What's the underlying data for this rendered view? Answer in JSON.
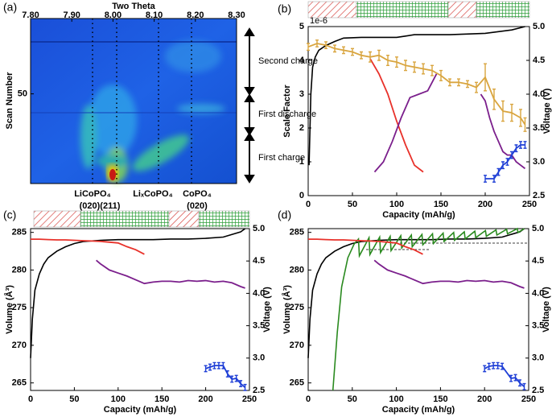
{
  "chart_data": [
    {
      "type": "heatmap",
      "panel_label": "(a)",
      "x_label": "Two Theta",
      "y_label": "Scan Number",
      "xlim": [
        7.8,
        8.3
      ],
      "xticks": [
        {
          "value": 7.8,
          "label": "7.80"
        },
        {
          "value": 7.9,
          "label": "7.90"
        },
        {
          "value": 8.0,
          "label": "8.00"
        },
        {
          "value": 8.1,
          "label": "8.10"
        },
        {
          "value": 8.2,
          "label": "8.20"
        },
        {
          "value": 8.3,
          "label": "8.30"
        }
      ],
      "ylim": [
        0,
        92
      ],
      "yticks": [
        50
      ],
      "peak_labels": [
        "LiCoPO₄",
        "(020)(211)",
        "LiₓCoPO₄",
        "CoPO₄",
        "(020)"
      ],
      "regions": [
        "Second charge",
        "First discharge",
        "First charge"
      ]
    },
    {
      "type": "line",
      "panel_label": "(b)",
      "x_label": "Capacity (mAh/g)",
      "y_label": "Scale Factor",
      "y2_label": "Voltage (V)",
      "y_multiplier": "1e-6",
      "xlim": [
        0,
        250
      ],
      "xticks": [
        0,
        50,
        100,
        150,
        200,
        250
      ],
      "ylim": [
        0,
        5
      ],
      "yticks": [
        0,
        1,
        2,
        3,
        4,
        5
      ],
      "y2lim": [
        2.5,
        5.0
      ],
      "y2ticks": [
        2.5,
        {
          "value": 3,
          "label": "3.0"
        },
        3.5,
        {
          "value": 4,
          "label": "4.0"
        },
        4.5,
        {
          "value": 5,
          "label": "5.0"
        }
      ],
      "series": [
        {
          "color": "#000000",
          "axis": "y2",
          "x": [
            1,
            3,
            5,
            8,
            12,
            20,
            30,
            40,
            60,
            80,
            100,
            110,
            120,
            160,
            200,
            230,
            245
          ],
          "values": [
            2.95,
            4.0,
            4.4,
            4.55,
            4.65,
            4.72,
            4.78,
            4.83,
            4.84,
            4.84,
            4.84,
            4.86,
            4.88,
            4.88,
            4.9,
            4.95,
            5.0
          ]
        },
        {
          "color": "#e8312a",
          "x": [
            70,
            80,
            90,
            100,
            110,
            120,
            130
          ],
          "values": [
            4.05,
            3.6,
            3.0,
            2.2,
            1.5,
            0.9,
            0.7
          ]
        },
        {
          "color": "#7b1f8c",
          "x": [
            75,
            85,
            95,
            105,
            115,
            125,
            135,
            145,
            170,
            195,
            200,
            205,
            210,
            215,
            220,
            225,
            230,
            235,
            240,
            245
          ],
          "values": [
            0.7,
            1.0,
            1.6,
            2.3,
            2.9,
            3.0,
            3.1,
            3.6,
            null,
            3.0,
            2.8,
            2.3,
            1.9,
            1.6,
            1.3,
            1.2,
            1.2,
            1.0,
            0.9,
            0.8
          ]
        },
        {
          "color": "#d9a53f",
          "x": [
            0,
            10,
            20,
            30,
            40,
            50,
            60,
            70,
            80,
            90,
            100,
            110,
            120,
            130,
            140,
            150,
            160,
            170,
            180,
            190,
            200,
            210,
            220,
            230,
            240,
            245
          ],
          "values": [
            4.4,
            4.5,
            4.45,
            4.35,
            4.3,
            4.25,
            4.15,
            4.1,
            4.15,
            4.0,
            3.95,
            3.85,
            3.8,
            3.75,
            3.7,
            3.55,
            3.35,
            3.35,
            3.3,
            3.2,
            3.5,
            2.85,
            2.5,
            2.45,
            2.3,
            2.1
          ],
          "errors": [
            0.1,
            0.1,
            0.1,
            0.1,
            0.1,
            0.1,
            0.1,
            0.15,
            0.15,
            0.15,
            0.15,
            0.15,
            0.15,
            0.15,
            0.15,
            0.15,
            0.1,
            0.1,
            0.1,
            0.15,
            0.4,
            0.3,
            0.3,
            0.25,
            0.25,
            0.2
          ]
        },
        {
          "color": "#1f3fd6",
          "x": [
            200,
            210,
            215,
            220,
            225,
            230,
            235,
            240,
            245
          ],
          "values": [
            0.5,
            0.5,
            0.7,
            0.9,
            1.0,
            1.2,
            1.4,
            1.5,
            1.5
          ],
          "errors": [
            0.1,
            0.1,
            0.1,
            0.1,
            0.1,
            0.1,
            0.1,
            0.1,
            0.1
          ]
        }
      ]
    },
    {
      "type": "line",
      "panel_label": "(c)",
      "x_label": "Capacity (mAh/g)",
      "y_label": "Volume (Å³)",
      "y2_label": "Voltage (V)",
      "xlim": [
        0,
        250
      ],
      "xticks": [
        0,
        50,
        100,
        150,
        200,
        250
      ],
      "ylim": [
        264,
        285.5
      ],
      "yticks": [
        265,
        270,
        275,
        280,
        285
      ],
      "y2lim": [
        2.5,
        5.0
      ],
      "y2ticks": [
        2.5,
        {
          "value": 3,
          "label": "3.0"
        },
        3.5,
        {
          "value": 4,
          "label": "4.0"
        },
        4.5,
        {
          "value": 5,
          "label": "5.0"
        }
      ],
      "series": [
        {
          "color": "#000000",
          "axis": "y2",
          "x": [
            0,
            2,
            5,
            10,
            15,
            20,
            30,
            40,
            50,
            60,
            80,
            100,
            120,
            140,
            160,
            180,
            200,
            220,
            240,
            245
          ],
          "values": [
            3.0,
            3.6,
            4.05,
            4.3,
            4.45,
            4.55,
            4.65,
            4.72,
            4.77,
            4.8,
            4.82,
            4.83,
            4.83,
            4.83,
            4.84,
            4.84,
            4.85,
            4.87,
            4.95,
            5.0
          ]
        },
        {
          "color": "#e8312a",
          "x": [
            0,
            10,
            20,
            30,
            40,
            50,
            60,
            70,
            80,
            90,
            100,
            110,
            120,
            130
          ],
          "values": [
            284.1,
            284.1,
            284.05,
            284,
            284,
            283.95,
            283.9,
            283.85,
            283.8,
            283.7,
            283.6,
            283.1,
            282.7,
            282.1
          ]
        },
        {
          "color": "#7b1f8c",
          "x": [
            75,
            80,
            90,
            100,
            110,
            120,
            130,
            140,
            150,
            160,
            170,
            180,
            190,
            200,
            210,
            220,
            230,
            240,
            245
          ],
          "values": [
            281.3,
            280.8,
            280,
            279.6,
            279.2,
            278.7,
            278.2,
            278.4,
            278.5,
            278.5,
            278.4,
            278.6,
            278.5,
            278.6,
            278.4,
            278.5,
            278.3,
            277.8,
            277.6
          ]
        },
        {
          "color": "#1f3fd6",
          "x": [
            200,
            205,
            210,
            215,
            220,
            225,
            230,
            235,
            240,
            245
          ],
          "values": [
            266.9,
            267.1,
            267.3,
            267.3,
            267.3,
            266.2,
            265.5,
            265.6,
            264.9,
            264.4
          ],
          "errors": [
            0.4,
            0.4,
            0.4,
            0.4,
            0.4,
            0.4,
            0.4,
            0.4,
            0.4,
            0.4
          ]
        }
      ]
    },
    {
      "type": "line",
      "panel_label": "(d)",
      "x_label": "Capacity (mAh/g)",
      "y_label": "Volume (Å³)",
      "y2_label": "Voltage (V)",
      "xlim": [
        0,
        250
      ],
      "xticks": [
        0,
        50,
        100,
        150,
        200,
        250
      ],
      "ylim": [
        264,
        285.5
      ],
      "yticks": [
        265,
        270,
        275,
        280,
        285
      ],
      "y2lim": [
        2.5,
        5.0
      ],
      "y2ticks": [
        2.5,
        {
          "value": 3,
          "label": "3.0"
        },
        3.5,
        {
          "value": 4,
          "label": "4.0"
        },
        4.5,
        {
          "value": 5,
          "label": "5.0"
        }
      ],
      "series": [
        {
          "color": "#000000",
          "axis": "y2",
          "x": [
            0,
            2,
            5,
            10,
            15,
            20,
            30,
            40,
            50,
            60,
            80,
            100,
            120,
            140,
            160,
            180,
            200,
            220,
            240,
            245
          ],
          "values": [
            3.0,
            3.6,
            4.05,
            4.3,
            4.45,
            4.55,
            4.65,
            4.72,
            4.77,
            4.8,
            4.82,
            4.83,
            4.83,
            4.83,
            4.84,
            4.84,
            4.85,
            4.87,
            4.95,
            5.0
          ]
        },
        {
          "color": "#2a8a1f",
          "axis": "y2",
          "x": [
            28,
            33,
            38,
            45,
            52,
            57,
            58,
            69,
            70,
            81,
            82,
            93,
            94,
            105,
            106,
            117,
            118,
            129,
            130,
            141,
            142,
            153,
            154,
            165,
            166,
            177,
            178,
            189,
            190,
            201,
            202,
            213,
            214,
            225,
            226,
            237,
            238,
            245
          ],
          "values": [
            2.5,
            3.4,
            4.1,
            4.55,
            4.76,
            4.84,
            4.58,
            4.86,
            4.6,
            4.87,
            4.63,
            4.88,
            4.66,
            4.89,
            4.7,
            4.9,
            4.72,
            4.91,
            4.75,
            4.92,
            4.77,
            4.93,
            4.8,
            4.94,
            4.82,
            4.95,
            4.84,
            4.96,
            4.86,
            4.97,
            4.88,
            4.98,
            4.9,
            4.99,
            4.92,
            5.0,
            4.94,
            5.0
          ]
        },
        {
          "color": "#e8312a",
          "x": [
            0,
            10,
            20,
            30,
            40,
            50,
            60,
            70,
            80,
            90,
            100,
            110,
            120,
            130
          ],
          "values": [
            284.1,
            284.1,
            284.05,
            284,
            284,
            283.95,
            283.9,
            283.85,
            283.8,
            283.7,
            283.6,
            283.1,
            282.7,
            282.1
          ]
        },
        {
          "color": "#7b1f8c",
          "x": [
            75,
            80,
            90,
            100,
            110,
            120,
            130,
            140,
            150,
            160,
            170,
            180,
            190,
            200,
            210,
            220,
            230,
            240,
            245
          ],
          "values": [
            281.3,
            280.8,
            280,
            279.6,
            279.2,
            278.7,
            278.2,
            278.4,
            278.5,
            278.5,
            278.4,
            278.6,
            278.5,
            278.6,
            278.4,
            278.5,
            278.3,
            277.8,
            277.6
          ]
        },
        {
          "color": "#1f3fd6",
          "x": [
            200,
            205,
            210,
            215,
            220,
            230,
            235,
            240,
            245
          ],
          "values": [
            266.9,
            267.2,
            267.3,
            267.3,
            267.2,
            265.6,
            265.7,
            265.0,
            264.5
          ],
          "errors": [
            0.4,
            0.4,
            0.4,
            0.4,
            0.4,
            0.4,
            0.4,
            0.4,
            0.4
          ]
        }
      ]
    }
  ]
}
